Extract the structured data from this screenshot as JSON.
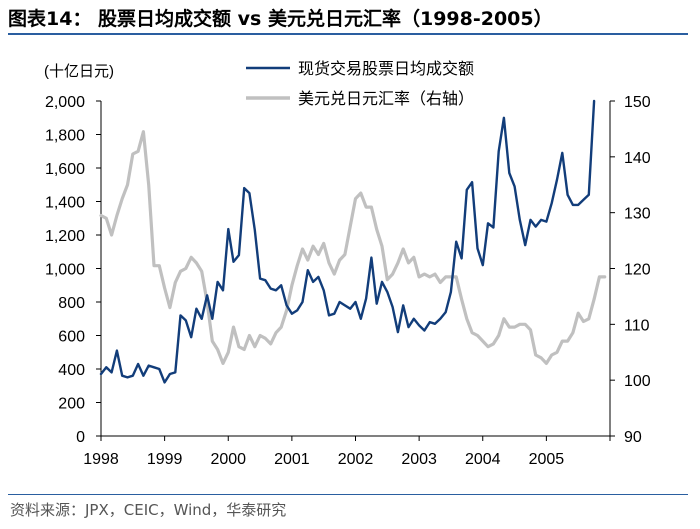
{
  "figure": {
    "title": "图表14： 股票日均成交额 vs 美元兑日元汇率（1998-2005）",
    "source": "资料来源：JPX，CEIC，Wind，华泰研究"
  },
  "chart_data": {
    "type": "line",
    "unit_label": "(十亿日元)",
    "x_tick_labels": [
      "1998",
      "1999",
      "2000",
      "2001",
      "2002",
      "2003",
      "2004",
      "2005"
    ],
    "xlim": [
      1998,
      2006
    ],
    "ylim_left": [
      0,
      2000
    ],
    "ylim_right": [
      90,
      150
    ],
    "left_tick_labels": [
      "0",
      "200",
      "400",
      "600",
      "800",
      "1,000",
      "1,200",
      "1,400",
      "1,600",
      "1,800",
      "2,000"
    ],
    "right_tick_labels": [
      "90",
      "100",
      "110",
      "120",
      "130",
      "140",
      "150"
    ],
    "legend": [
      "现货交易股票日均成交额",
      "美元兑日元汇率（右轴）"
    ],
    "series": [
      {
        "name": "现货交易股票日均成交额",
        "axis": "left",
        "color": "#123d7a",
        "x": [
          1998.0,
          1998.083,
          1998.167,
          1998.25,
          1998.333,
          1998.417,
          1998.5,
          1998.583,
          1998.667,
          1998.75,
          1998.833,
          1998.917,
          1999.0,
          1999.083,
          1999.167,
          1999.25,
          1999.333,
          1999.417,
          1999.5,
          1999.583,
          1999.667,
          1999.75,
          1999.833,
          1999.917,
          2000.0,
          2000.083,
          2000.167,
          2000.25,
          2000.333,
          2000.417,
          2000.5,
          2000.583,
          2000.667,
          2000.75,
          2000.833,
          2000.917,
          2001.0,
          2001.083,
          2001.167,
          2001.25,
          2001.333,
          2001.417,
          2001.5,
          2001.583,
          2001.667,
          2001.75,
          2001.833,
          2001.917,
          2002.0,
          2002.083,
          2002.167,
          2002.25,
          2002.333,
          2002.417,
          2002.5,
          2002.583,
          2002.667,
          2002.75,
          2002.833,
          2002.917,
          2003.0,
          2003.083,
          2003.167,
          2003.25,
          2003.333,
          2003.417,
          2003.5,
          2003.583,
          2003.667,
          2003.75,
          2003.833,
          2003.917,
          2004.0,
          2004.083,
          2004.167,
          2004.25,
          2004.333,
          2004.417,
          2004.5,
          2004.583,
          2004.667,
          2004.75,
          2004.833,
          2004.917,
          2005.0,
          2005.083,
          2005.167,
          2005.25,
          2005.333,
          2005.417,
          2005.5,
          2005.583,
          2005.667,
          2005.75
        ],
        "y": [
          370,
          410,
          380,
          510,
          360,
          350,
          360,
          430,
          360,
          420,
          410,
          400,
          320,
          370,
          380,
          720,
          690,
          590,
          760,
          700,
          840,
          700,
          920,
          870,
          1235,
          1040,
          1080,
          1480,
          1450,
          1230,
          940,
          930,
          880,
          870,
          900,
          780,
          730,
          750,
          800,
          990,
          920,
          950,
          870,
          720,
          730,
          800,
          780,
          760,
          800,
          700,
          820,
          1065,
          790,
          920,
          860,
          770,
          620,
          780,
          650,
          700,
          660,
          630,
          680,
          670,
          700,
          740,
          860,
          1160,
          1060,
          1470,
          1515,
          1120,
          1020,
          1270,
          1245,
          1700,
          1900,
          1570,
          1490,
          1290,
          1140,
          1290,
          1250,
          1290,
          1280,
          1390,
          1530,
          1690,
          1440,
          1380,
          1380,
          1410,
          1440,
          2000
        ]
      },
      {
        "name": "美元兑日元汇率（右轴）",
        "axis": "right",
        "color": "#c0c0c0",
        "x": [
          1998.0,
          1998.083,
          1998.167,
          1998.25,
          1998.333,
          1998.417,
          1998.5,
          1998.583,
          1998.667,
          1998.75,
          1998.833,
          1998.917,
          1999.0,
          1999.083,
          1999.167,
          1999.25,
          1999.333,
          1999.417,
          1999.5,
          1999.583,
          1999.667,
          1999.75,
          1999.833,
          1999.917,
          2000.0,
          2000.083,
          2000.167,
          2000.25,
          2000.333,
          2000.417,
          2000.5,
          2000.583,
          2000.667,
          2000.75,
          2000.833,
          2000.917,
          2001.0,
          2001.083,
          2001.167,
          2001.25,
          2001.333,
          2001.417,
          2001.5,
          2001.583,
          2001.667,
          2001.75,
          2001.833,
          2001.917,
          2002.0,
          2002.083,
          2002.167,
          2002.25,
          2002.333,
          2002.417,
          2002.5,
          2002.583,
          2002.667,
          2002.75,
          2002.833,
          2002.917,
          2003.0,
          2003.083,
          2003.167,
          2003.25,
          2003.333,
          2003.417,
          2003.5,
          2003.583,
          2003.667,
          2003.75,
          2003.833,
          2003.917,
          2004.0,
          2004.083,
          2004.167,
          2004.25,
          2004.333,
          2004.417,
          2004.5,
          2004.583,
          2004.667,
          2004.75,
          2004.833,
          2004.917,
          2005.0,
          2005.083,
          2005.167,
          2005.25,
          2005.333,
          2005.417,
          2005.5,
          2005.583,
          2005.667,
          2005.75,
          2005.833,
          2005.917
        ],
        "y": [
          129.5,
          129.0,
          126.0,
          129.5,
          132.5,
          135.0,
          140.5,
          141.0,
          144.5,
          135.0,
          120.5,
          120.5,
          116.5,
          113.0,
          117.5,
          119.5,
          120.0,
          122.0,
          121.0,
          119.5,
          114.0,
          107.0,
          105.5,
          103.0,
          105.0,
          109.5,
          106.0,
          105.5,
          108.0,
          106.0,
          108.0,
          107.5,
          106.5,
          108.5,
          109.5,
          112.5,
          117.0,
          120.5,
          123.5,
          121.5,
          124.0,
          122.5,
          124.5,
          121.0,
          119.0,
          121.5,
          122.5,
          127.5,
          132.5,
          133.5,
          131.0,
          131.0,
          127.0,
          124.0,
          118.0,
          119.0,
          121.0,
          123.5,
          121.0,
          122.0,
          118.5,
          119.0,
          118.5,
          119.0,
          117.5,
          118.5,
          118.5,
          118.5,
          114.5,
          111.0,
          108.5,
          108.0,
          107.0,
          106.0,
          106.5,
          108.0,
          111.0,
          109.5,
          109.5,
          110.0,
          110.0,
          109.0,
          104.5,
          104.0,
          103.0,
          104.5,
          105.0,
          107.0,
          107.0,
          108.5,
          112.0,
          110.5,
          111.0,
          114.5,
          118.5,
          118.5
        ]
      }
    ]
  }
}
